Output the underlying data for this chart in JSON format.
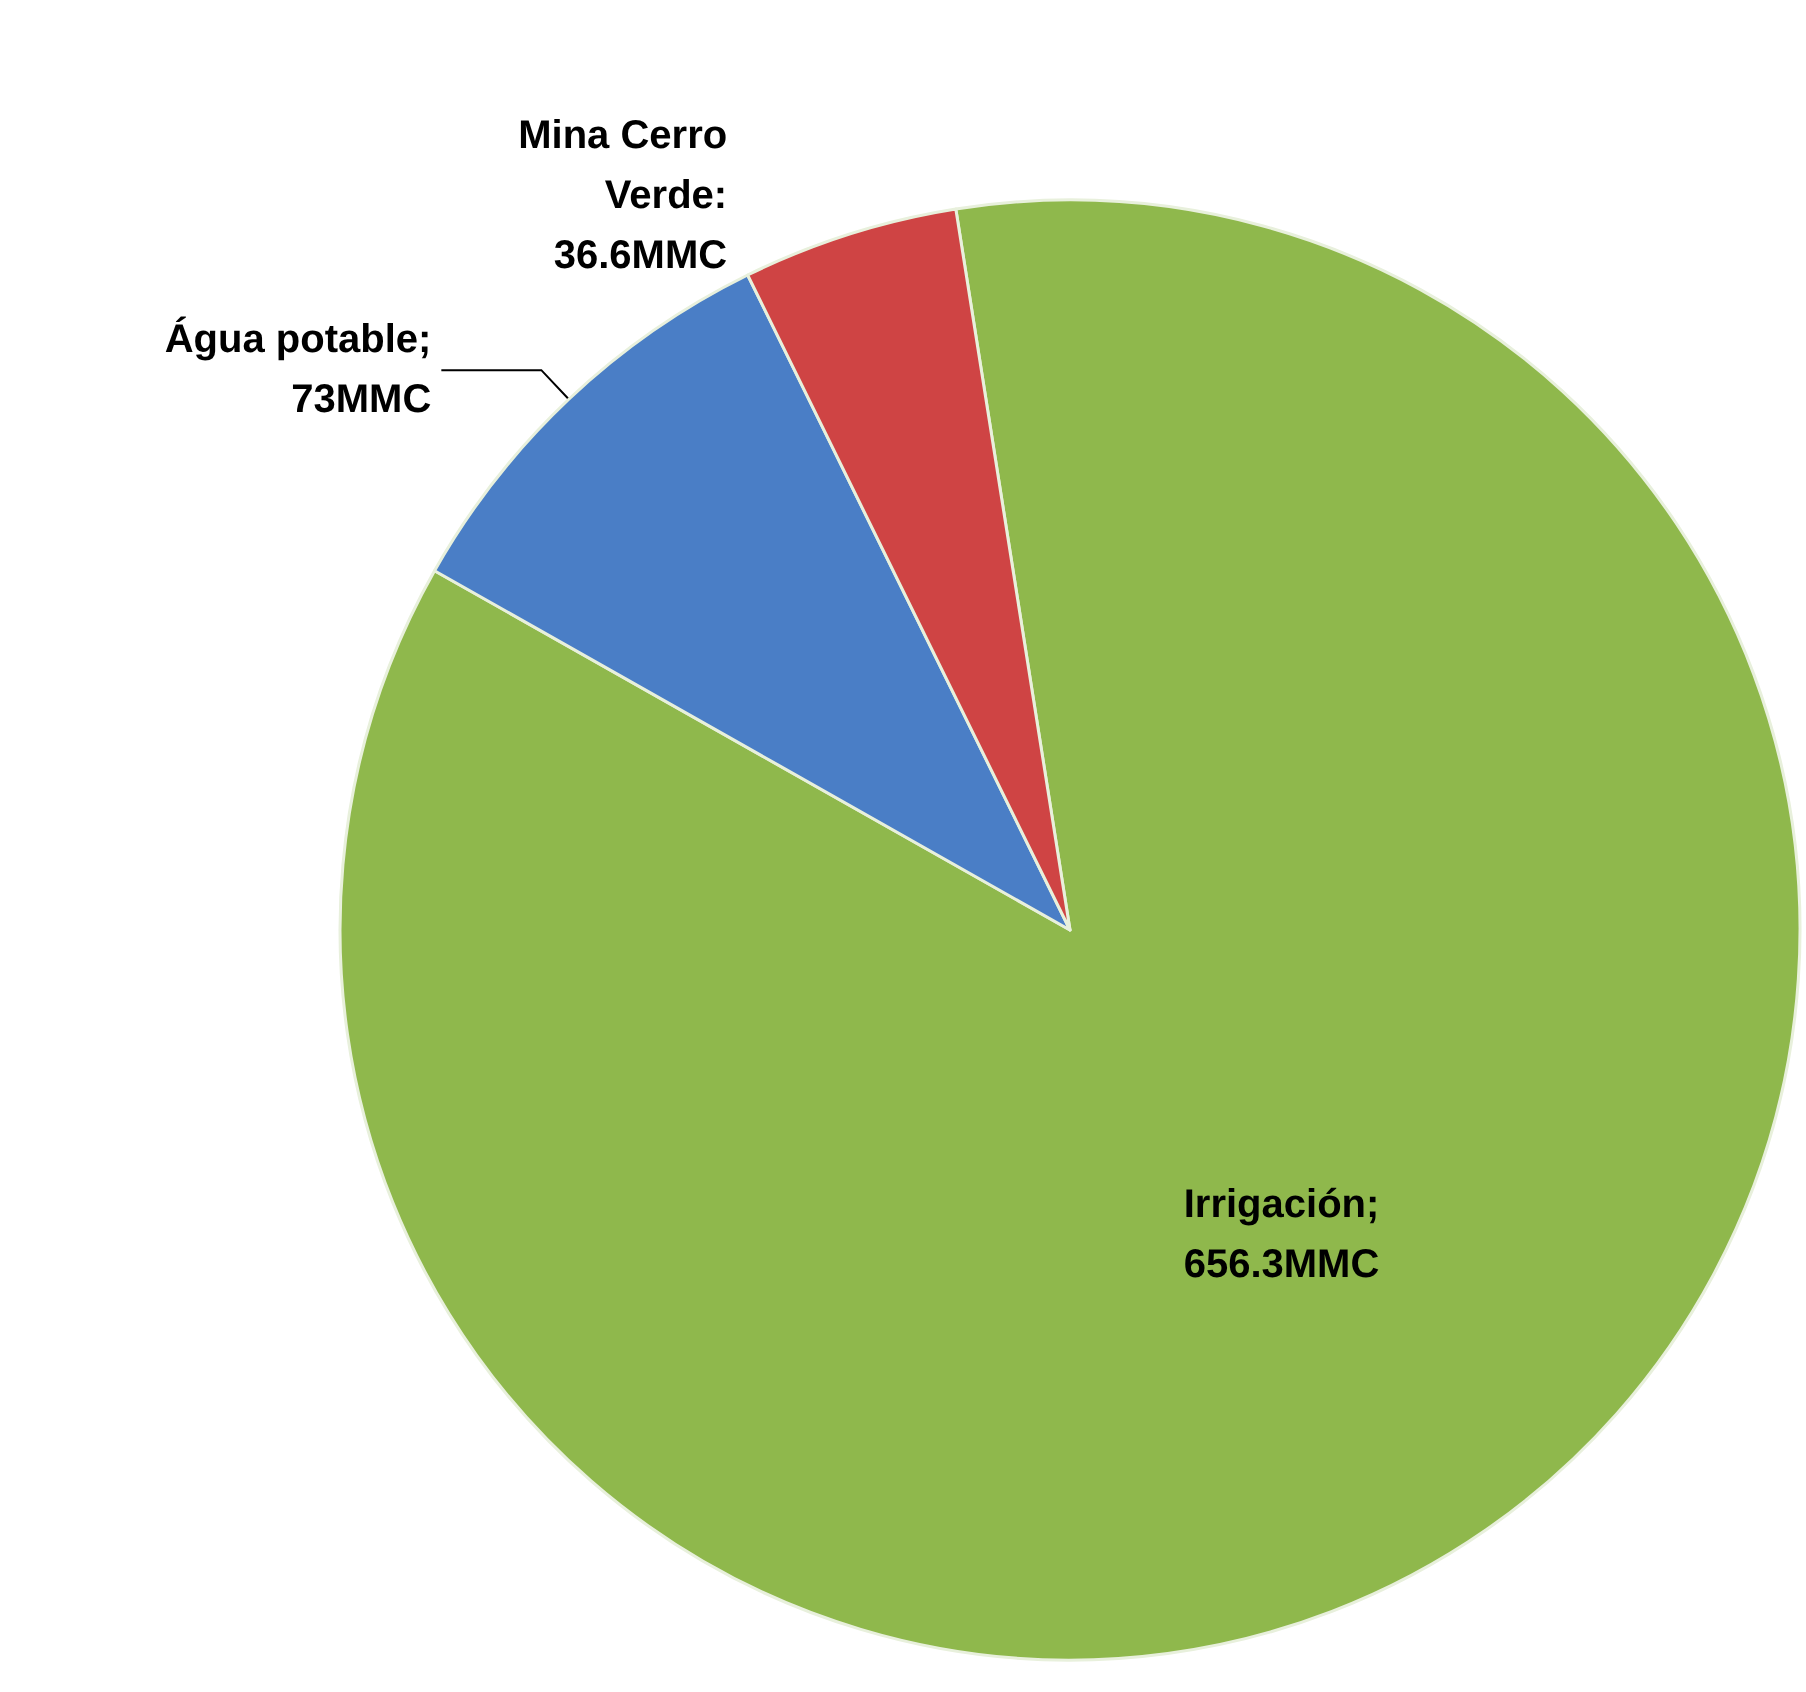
{
  "chart_data": {
    "type": "pie",
    "categories": [
      "Irrigación",
      "Água potable",
      "Mina Cerro Verde"
    ],
    "values": [
      656.3,
      73,
      36.6
    ],
    "value_labels": [
      "; 656.3MMC",
      "; 73MMC",
      ": 36.6MMC"
    ],
    "colors": [
      "#8fb84c",
      "#4a7ec6",
      "#cf4444"
    ],
    "legend": false
  }
}
